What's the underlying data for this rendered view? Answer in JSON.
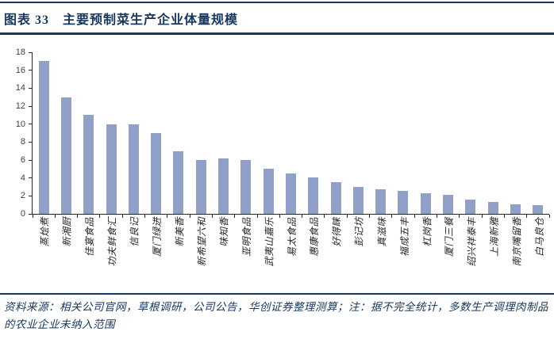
{
  "header": {
    "title": "图表 33　主要预制菜生产企业体量规模"
  },
  "chart_data": {
    "type": "bar",
    "title": "主要预制菜生产企业体量规模",
    "categories": [
      "蒸烩煮",
      "新湘厨",
      "佳宴食品",
      "功夫鲜食汇",
      "信良记",
      "厦门绿进",
      "新美香",
      "新希望六和",
      "味知香",
      "亚明食品",
      "武夷山嘉乐",
      "易太食品",
      "惠康食品",
      "好得睐",
      "彭记坊",
      "真滋味",
      "福成五丰",
      "杠岗香",
      "厦门三餐",
      "绍兴祥泰丰",
      "上海新雅",
      "南京嘴留香",
      "白马良仓"
    ],
    "values": [
      17,
      13,
      11,
      10,
      10,
      9,
      7,
      6,
      6.2,
      6,
      5,
      4.5,
      4.1,
      3.5,
      3,
      2.7,
      2.6,
      2.3,
      2.1,
      1.6,
      1.3,
      1.1,
      1
    ],
    "xlabel": "",
    "ylabel": "",
    "ylim": [
      0,
      18
    ],
    "ytick_step": 2,
    "grid": false,
    "legend": false,
    "bar_color": "#91A0C9",
    "axis_color": "#262626",
    "tick_label_color": "#404040"
  },
  "footer": {
    "note": "资料来源：相关公司官网，草根调研，公司公告，华创证券整理测算；注：据不完全统计，多数生产调理肉制品的农业企业未纳入范围"
  },
  "colors": {
    "accent": "#17375E"
  }
}
